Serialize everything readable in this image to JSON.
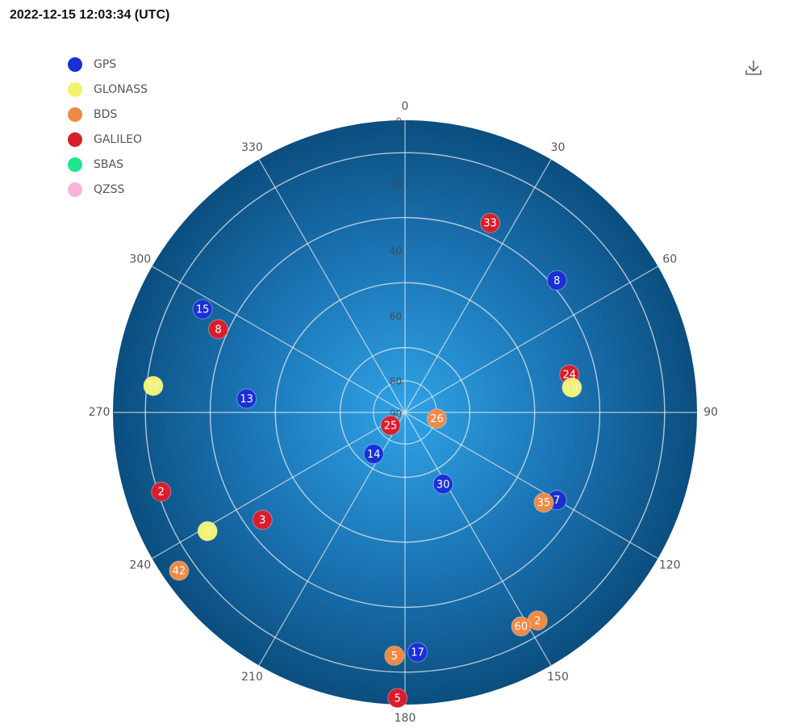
{
  "timestamp": "2022-12-15 12:03:34 (UTC)",
  "legend": [
    {
      "label": "GPS",
      "color": "#1a2fd6"
    },
    {
      "label": "GLONASS",
      "color": "#f2f26e"
    },
    {
      "label": "BDS",
      "color": "#ef8a45"
    },
    {
      "label": "GALILEO",
      "color": "#d81e2c"
    },
    {
      "label": "SBAS",
      "color": "#1ee68c"
    },
    {
      "label": "QZSS",
      "color": "#f7b3d9"
    }
  ],
  "icons": {
    "download": "download-icon"
  },
  "chart_data": {
    "type": "scatter",
    "projection": "polar-skyplot",
    "azimuth_ticks": [
      "0",
      "30",
      "60",
      "90",
      "120",
      "150",
      "180",
      "210",
      "240",
      "270",
      "300",
      "330"
    ],
    "elevation_ticks": [
      "0",
      "20",
      "40",
      "60",
      "80",
      "90"
    ],
    "satellites": [
      {
        "id": "33",
        "system": "GALILEO",
        "azimuth": 24.2,
        "elevation": 26
      },
      {
        "id": "8",
        "system": "GPS",
        "azimuth": 49,
        "elevation": 28
      },
      {
        "id": "24",
        "system": "GALILEO",
        "azimuth": 77,
        "elevation": 38
      },
      {
        "id": "14",
        "system": "GLONASS",
        "azimuth": 81.5,
        "elevation": 38
      },
      {
        "id": "7",
        "system": "GPS",
        "azimuth": 120,
        "elevation": 36
      },
      {
        "id": "35",
        "system": "BDS",
        "azimuth": 123,
        "elevation": 39
      },
      {
        "id": "26",
        "system": "BDS",
        "azimuth": 101,
        "elevation": 80
      },
      {
        "id": "30",
        "system": "GPS",
        "azimuth": 152,
        "elevation": 65
      },
      {
        "id": "2",
        "system": "BDS",
        "azimuth": 147.5,
        "elevation": 14
      },
      {
        "id": "60",
        "system": "BDS",
        "azimuth": 151.5,
        "elevation": 15
      },
      {
        "id": "17",
        "system": "GPS",
        "azimuth": 177,
        "elevation": 16
      },
      {
        "id": "5",
        "system": "BDS",
        "azimuth": 182.5,
        "elevation": 15
      },
      {
        "id": "5",
        "system": "GALILEO",
        "azimuth": 181.5,
        "elevation": 2
      },
      {
        "id": "42",
        "system": "BDS",
        "azimuth": 235,
        "elevation": 5
      },
      {
        "id": "3",
        "system": "GLONASS",
        "azimuth": 239,
        "elevation": 19
      },
      {
        "id": "3",
        "system": "GALILEO",
        "azimuth": 233,
        "elevation": 35
      },
      {
        "id": "2",
        "system": "GALILEO",
        "azimuth": 252,
        "elevation": 11
      },
      {
        "id": "14",
        "system": "GPS",
        "azimuth": 217,
        "elevation": 74
      },
      {
        "id": "25",
        "system": "GALILEO",
        "azimuth": 228,
        "elevation": 84
      },
      {
        "id": "13",
        "system": "GPS",
        "azimuth": 275,
        "elevation": 41
      },
      {
        "id": "14",
        "system": "GLONASS",
        "azimuth": 276,
        "elevation": 12
      },
      {
        "id": "15",
        "system": "GPS",
        "azimuth": 297,
        "elevation": 20
      },
      {
        "id": "8",
        "system": "GALILEO",
        "azimuth": 294,
        "elevation": 27
      }
    ]
  }
}
